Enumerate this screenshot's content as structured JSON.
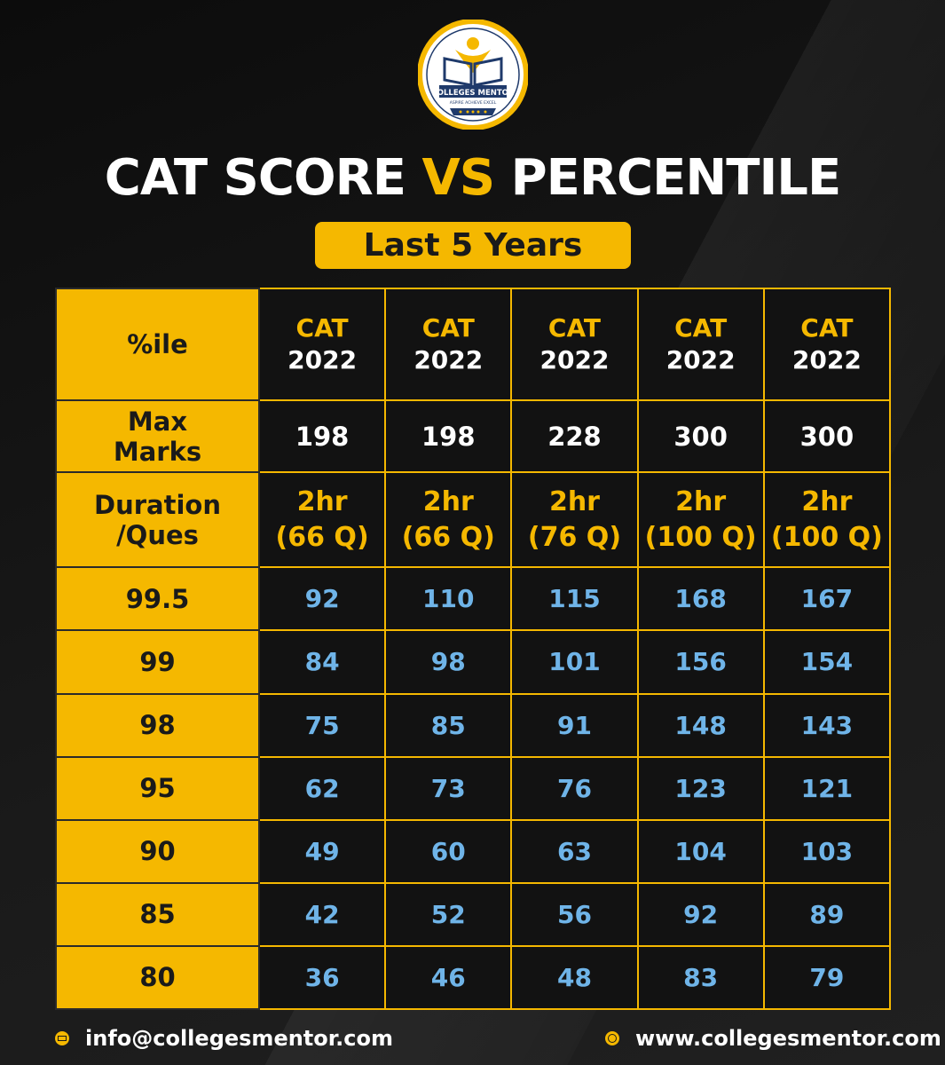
{
  "header": {
    "logo_text": "COLLEGES MENTOR",
    "logo_tagline": "ASPIRE ACHIEVE EXCEL",
    "title_part1": "CAT SCORE ",
    "title_vs": "VS",
    "title_part2": " PERCENTILE",
    "subtitle": "Last 5 Years"
  },
  "colors": {
    "accent": "#f5b800",
    "background": "#151515",
    "score_text": "#6fb4e8"
  },
  "table": {
    "corner_label": "%ile",
    "columns": [
      {
        "exam": "CAT",
        "year": "2022"
      },
      {
        "exam": "CAT",
        "year": "2022"
      },
      {
        "exam": "CAT",
        "year": "2022"
      },
      {
        "exam": "CAT",
        "year": "2022"
      },
      {
        "exam": "CAT",
        "year": "2022"
      }
    ],
    "max_marks_label": [
      "Max",
      "Marks"
    ],
    "max_marks": [
      "198",
      "198",
      "228",
      "300",
      "300"
    ],
    "duration_label": [
      "Duration",
      "/Ques"
    ],
    "durations": [
      {
        "time": "2hr",
        "questions": "(66 Q)"
      },
      {
        "time": "2hr",
        "questions": "(66 Q)"
      },
      {
        "time": "2hr",
        "questions": "(76 Q)"
      },
      {
        "time": "2hr",
        "questions": "(100 Q)"
      },
      {
        "time": "2hr",
        "questions": "(100 Q)"
      }
    ],
    "rows": [
      {
        "percentile": "99.5",
        "scores": [
          "92",
          "110",
          "115",
          "168",
          "167"
        ]
      },
      {
        "percentile": "99",
        "scores": [
          "84",
          "98",
          "101",
          "156",
          "154"
        ]
      },
      {
        "percentile": "98",
        "scores": [
          "75",
          "85",
          "91",
          "148",
          "143"
        ]
      },
      {
        "percentile": "95",
        "scores": [
          "62",
          "73",
          "76",
          "123",
          "121"
        ]
      },
      {
        "percentile": "90",
        "scores": [
          "49",
          "60",
          "63",
          "104",
          "103"
        ]
      },
      {
        "percentile": "85",
        "scores": [
          "42",
          "52",
          "56",
          "92",
          "89"
        ]
      },
      {
        "percentile": "80",
        "scores": [
          "36",
          "46",
          "48",
          "83",
          "79"
        ]
      }
    ]
  },
  "footer": {
    "email_icon": "mail-icon",
    "email": "info@collegesmentor.com",
    "web_icon": "globe-icon",
    "website": "www.collegesmentor.com"
  }
}
